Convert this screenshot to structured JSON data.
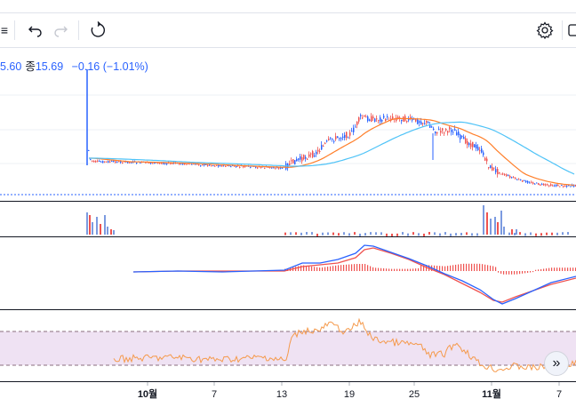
{
  "toolbar": {
    "left_glyph": "≡",
    "undo_icon": "undo-arrow",
    "redo_icon": "redo-arrow",
    "reset_icon": "circular-arrow",
    "settings_icon": "gear"
  },
  "legend": {
    "partial_value": "5.60",
    "close_label": "종",
    "close_value": "15.69",
    "change": "−0.16 (−1.01%)"
  },
  "xaxis": {
    "labels": [
      "10월",
      "7",
      "13",
      "19",
      "25",
      "11월",
      "7"
    ]
  },
  "colors": {
    "up": "#ef5350",
    "down": "#2962ff",
    "ma_fast": "#ff7f2a",
    "ma_slow": "#4fc3f7",
    "rsi_line": "#f59a4c",
    "rsi_band": "#efe2f3",
    "macd_line": "#2962ff",
    "signal_line": "#ef5350"
  },
  "chart_data": {
    "type": "line",
    "x": [
      "10월",
      "7",
      "13",
      "19",
      "25",
      "11월",
      "7"
    ],
    "series": []
  },
  "scroll_button": "»"
}
